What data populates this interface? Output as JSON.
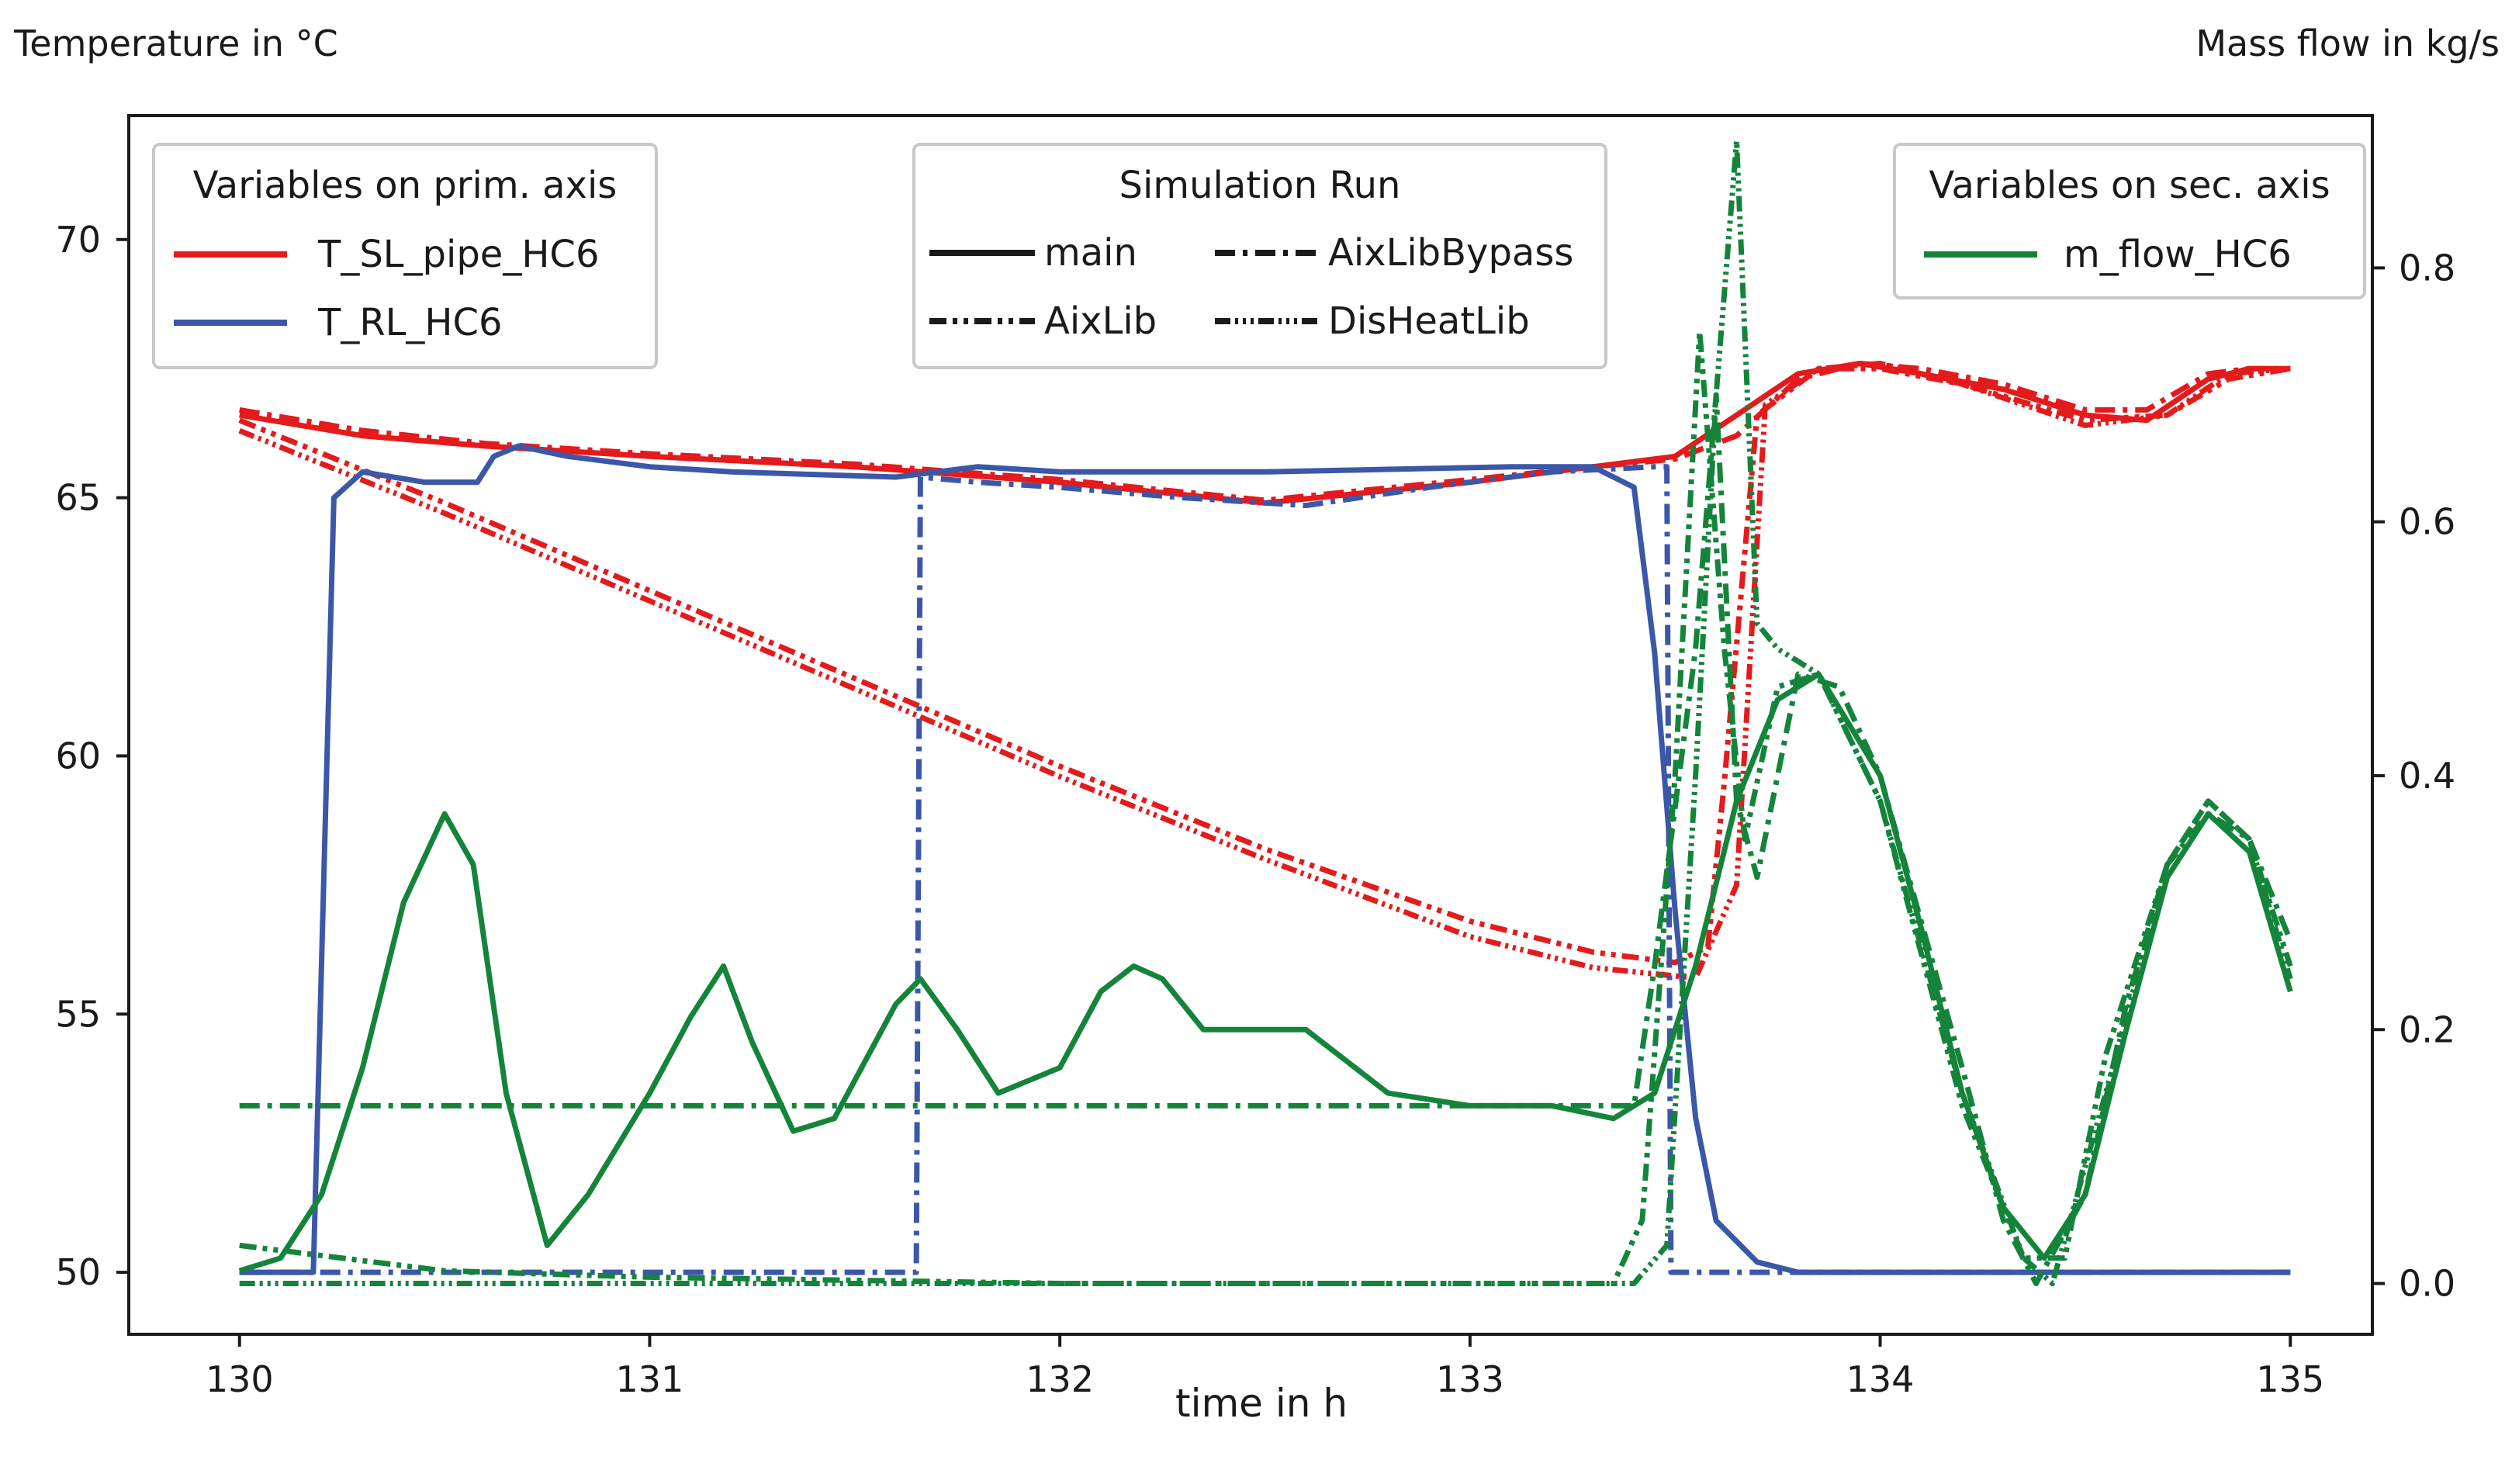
{
  "chart_data": {
    "type": "line",
    "title": "",
    "xlabel": "time in h",
    "ylabel_primary": "Temperature in °C",
    "ylabel_secondary": "Mass flow in kg/s",
    "xlim": [
      129.73,
      135.2
    ],
    "ylim_primary": [
      48.8,
      72.4
    ],
    "ylim_secondary": [
      -0.04,
      0.92
    ],
    "x_ticks": [
      130,
      131,
      132,
      133,
      134,
      135
    ],
    "x_tick_labels": [
      "130",
      "131",
      "132",
      "133",
      "134",
      "135"
    ],
    "y_ticks_primary": [
      50,
      55,
      60,
      65,
      70
    ],
    "y_tick_labels_primary": [
      "50",
      "55",
      "60",
      "65",
      "70"
    ],
    "y_ticks_secondary": [
      0.0,
      0.2,
      0.4,
      0.6,
      0.8
    ],
    "y_tick_labels_secondary": [
      "0.0",
      "0.2",
      "0.4",
      "0.6",
      "0.8"
    ],
    "colors": {
      "T_SL_pipe_HC6": "#e41a1c",
      "T_RL_HC6": "#3b57a8",
      "m_flow_HC6": "#14843b"
    },
    "legends": {
      "primary": {
        "title": "Variables on prim. axis",
        "entries": [
          "T_SL_pipe_HC6",
          "T_RL_HC6"
        ]
      },
      "runs": {
        "title": "Simulation Run",
        "entries": [
          "main",
          "AixLibBypass",
          "AixLib",
          "DisHeatLib"
        ]
      },
      "secondary": {
        "title": "Variables on sec. axis",
        "entries": [
          "m_flow_HC6"
        ]
      }
    },
    "series": [
      {
        "name": "T_SL_pipe_HC6 (main)",
        "variable": "T_SL_pipe_HC6",
        "run": "main",
        "axis": "primary",
        "x": [
          130.0,
          130.3,
          130.6,
          131.0,
          131.5,
          132.0,
          132.5,
          133.0,
          133.3,
          133.5,
          133.65,
          133.8,
          133.95,
          134.1,
          134.3,
          134.5,
          134.65,
          134.8,
          134.9,
          135.0
        ],
        "y": [
          66.6,
          66.2,
          66.0,
          65.8,
          65.6,
          65.3,
          64.9,
          65.3,
          65.6,
          65.8,
          66.6,
          67.4,
          67.6,
          67.4,
          67.1,
          66.6,
          66.5,
          67.3,
          67.5,
          67.5
        ]
      },
      {
        "name": "T_SL_pipe_HC6 (AixLibBypass)",
        "variable": "T_SL_pipe_HC6",
        "run": "AixLibBypass",
        "axis": "primary",
        "x": [
          130.0,
          130.3,
          130.6,
          131.0,
          131.5,
          132.0,
          132.5,
          133.0,
          133.3,
          133.5,
          133.65,
          133.8,
          133.95,
          134.1,
          134.3,
          134.5,
          134.65,
          134.8,
          134.9,
          135.0
        ],
        "y": [
          66.7,
          66.3,
          66.05,
          65.85,
          65.65,
          65.35,
          64.95,
          65.35,
          65.6,
          65.75,
          66.2,
          67.3,
          67.6,
          67.5,
          67.2,
          66.7,
          66.7,
          67.4,
          67.5,
          67.5
        ]
      },
      {
        "name": "T_SL_pipe_HC6 (AixLib)",
        "variable": "T_SL_pipe_HC6",
        "run": "AixLib",
        "axis": "primary",
        "x": [
          130.0,
          130.5,
          131.0,
          131.5,
          132.0,
          132.5,
          133.0,
          133.3,
          133.5,
          133.58,
          133.62,
          133.7,
          133.85,
          134.0,
          134.2,
          134.5,
          134.7,
          134.85,
          135.0
        ],
        "y": [
          66.5,
          64.9,
          63.2,
          61.5,
          59.8,
          58.2,
          56.8,
          56.2,
          56.0,
          56.3,
          59.5,
          66.6,
          67.5,
          67.5,
          67.2,
          66.5,
          66.6,
          67.3,
          67.5
        ]
      },
      {
        "name": "T_SL_pipe_HC6 (DisHeatLib)",
        "variable": "T_SL_pipe_HC6",
        "run": "DisHeatLib",
        "axis": "primary",
        "x": [
          130.0,
          130.5,
          131.0,
          131.5,
          132.0,
          132.5,
          133.0,
          133.3,
          133.55,
          133.65,
          133.72,
          133.85,
          134.0,
          134.2,
          134.5,
          134.7,
          134.85,
          135.0
        ],
        "y": [
          66.3,
          64.7,
          63.0,
          61.3,
          59.6,
          58.0,
          56.5,
          55.9,
          55.7,
          57.5,
          66.8,
          67.5,
          67.6,
          67.2,
          66.4,
          66.6,
          67.4,
          67.5
        ]
      },
      {
        "name": "T_RL_HC6 (main)",
        "variable": "T_RL_HC6",
        "run": "main",
        "axis": "primary",
        "x": [
          130.0,
          130.18,
          130.23,
          130.3,
          130.45,
          130.58,
          130.62,
          130.68,
          130.8,
          131.0,
          131.2,
          131.6,
          131.8,
          132.0,
          132.2,
          132.5,
          132.8,
          133.1,
          133.3,
          133.4,
          133.45,
          133.5,
          133.55,
          133.6,
          133.7,
          133.8,
          134.0,
          135.0
        ],
        "y": [
          50.0,
          50.0,
          65.0,
          65.5,
          65.3,
          65.3,
          65.8,
          66.0,
          65.8,
          65.6,
          65.5,
          65.4,
          65.6,
          65.5,
          65.5,
          65.5,
          65.55,
          65.6,
          65.6,
          65.2,
          62.0,
          57.0,
          53.0,
          51.0,
          50.2,
          50.0,
          50.0,
          50.0
        ]
      },
      {
        "name": "T_RL_HC6 (AixLibBypass)",
        "variable": "T_RL_HC6",
        "run": "AixLibBypass",
        "axis": "primary",
        "x": [
          130.0,
          131.65,
          131.66,
          131.8,
          132.0,
          132.3,
          132.6,
          132.9,
          133.2,
          133.45,
          133.48,
          133.49,
          135.0
        ],
        "y": [
          50.0,
          50.0,
          65.4,
          65.3,
          65.2,
          65.0,
          64.85,
          65.2,
          65.5,
          65.6,
          65.6,
          50.0,
          50.0
        ]
      },
      {
        "name": "m_flow_HC6 (main)",
        "variable": "m_flow_HC6",
        "run": "main",
        "axis": "secondary",
        "x": [
          130.0,
          130.1,
          130.2,
          130.3,
          130.4,
          130.5,
          130.57,
          130.65,
          130.75,
          130.85,
          131.0,
          131.1,
          131.18,
          131.25,
          131.35,
          131.45,
          131.6,
          131.66,
          131.75,
          131.85,
          132.0,
          132.1,
          132.18,
          132.25,
          132.35,
          132.5,
          132.6,
          132.8,
          133.0,
          133.2,
          133.35,
          133.45,
          133.55,
          133.65,
          133.75,
          133.85,
          134.0,
          134.1,
          134.2,
          134.3,
          134.4,
          134.5,
          134.6,
          134.7,
          134.8,
          134.9,
          135.0
        ],
        "y": [
          0.01,
          0.02,
          0.07,
          0.17,
          0.3,
          0.37,
          0.33,
          0.15,
          0.03,
          0.07,
          0.15,
          0.21,
          0.25,
          0.19,
          0.12,
          0.13,
          0.22,
          0.24,
          0.2,
          0.15,
          0.17,
          0.23,
          0.25,
          0.24,
          0.2,
          0.2,
          0.2,
          0.15,
          0.14,
          0.14,
          0.13,
          0.15,
          0.25,
          0.38,
          0.46,
          0.48,
          0.4,
          0.28,
          0.15,
          0.06,
          0.02,
          0.07,
          0.2,
          0.32,
          0.37,
          0.34,
          0.23
        ]
      },
      {
        "name": "m_flow_HC6 (AixLibBypass)",
        "variable": "m_flow_HC6",
        "run": "AixLibBypass",
        "axis": "secondary",
        "x": [
          130.0,
          133.4,
          133.45,
          133.55,
          133.6,
          133.65,
          133.7,
          133.8,
          133.9,
          134.0,
          134.2,
          134.3,
          134.38,
          134.5,
          134.6,
          134.7,
          134.8,
          134.9,
          135.0
        ],
        "y": [
          0.14,
          0.14,
          0.25,
          0.5,
          0.7,
          0.38,
          0.32,
          0.48,
          0.47,
          0.4,
          0.17,
          0.05,
          0.0,
          0.07,
          0.22,
          0.33,
          0.37,
          0.35,
          0.27
        ]
      },
      {
        "name": "m_flow_HC6 (AixLib)",
        "variable": "m_flow_HC6",
        "run": "AixLib",
        "axis": "secondary",
        "x": [
          130.0,
          130.5,
          131.0,
          132.0,
          133.0,
          133.35,
          133.42,
          133.5,
          133.56,
          133.62,
          133.67,
          133.75,
          133.85,
          134.0,
          134.2,
          134.35,
          134.45,
          134.55,
          134.7,
          134.8,
          134.9,
          135.0
        ],
        "y": [
          0.03,
          0.01,
          0.005,
          0.0,
          0.0,
          0.0,
          0.05,
          0.4,
          0.75,
          0.5,
          0.35,
          0.47,
          0.48,
          0.38,
          0.14,
          0.02,
          0.02,
          0.18,
          0.33,
          0.38,
          0.35,
          0.25
        ]
      },
      {
        "name": "m_flow_HC6 (DisHeatLib)",
        "variable": "m_flow_HC6",
        "run": "DisHeatLib",
        "axis": "secondary",
        "x": [
          130.0,
          130.5,
          131.0,
          132.0,
          133.0,
          133.4,
          133.48,
          133.55,
          133.6,
          133.65,
          133.7,
          133.75,
          133.85,
          134.0,
          134.2,
          134.35,
          134.42,
          134.55,
          134.7,
          134.8,
          134.9,
          135.0
        ],
        "y": [
          0.0,
          0.0,
          0.0,
          0.0,
          0.0,
          0.0,
          0.03,
          0.4,
          0.7,
          0.9,
          0.52,
          0.5,
          0.48,
          0.38,
          0.15,
          0.02,
          0.0,
          0.15,
          0.33,
          0.38,
          0.35,
          0.24
        ]
      }
    ]
  }
}
